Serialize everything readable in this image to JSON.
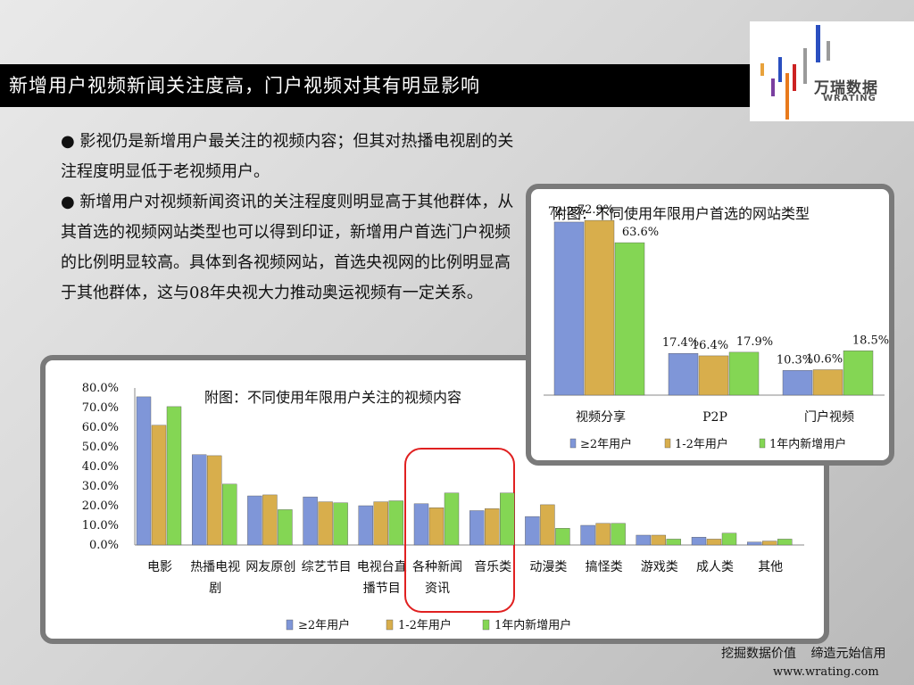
{
  "slide": {
    "title": "新增用户视频新闻关注度高，门户视频对其有明显影响",
    "logo": {
      "cn": "万瑞数据",
      "en": "WRATING"
    },
    "bullets": [
      "● 影视仍是新增用户最关注的视频内容；但其对热播电视剧的关注程度明显低于老视频用户。",
      "● 新增用户对视频新闻资讯的关注程度则明显高于其他群体，从其首选的视频网站类型也可以得到印证，新增用户首选门户视频的比例明显较高。具体到各视频网站，首选央视网的比例明显高于其他群体，这与08年央视大力推动奥运视频有一定关系。"
    ],
    "footer": {
      "slogan": "挖掘数据价值 缔造元始信用",
      "url": "www.wrating.com"
    }
  },
  "colors": {
    "series1": "#7f96d8",
    "series2": "#d8ae4c",
    "series3": "#84d654",
    "highlight": "#e02020",
    "titlebar": "#000000"
  },
  "chart_data": [
    {
      "type": "bar",
      "title": "附图：不同使用年限用户关注的视频内容",
      "categories": [
        "电影",
        "热播电视剧",
        "网友原创",
        "综艺节目",
        "电视台直播节目",
        "各种新闻资讯",
        "音乐类",
        "动漫类",
        "搞怪类",
        "游戏类",
        "成人类",
        "其他"
      ],
      "category_lines": [
        [
          "电影"
        ],
        [
          "热播电视",
          "剧"
        ],
        [
          "网友原创"
        ],
        [
          "综艺节目"
        ],
        [
          "电视台直",
          "播节目"
        ],
        [
          "各种新闻",
          "资讯"
        ],
        [
          "音乐类"
        ],
        [
          "动漫类"
        ],
        [
          "搞怪类"
        ],
        [
          "游戏类"
        ],
        [
          "成人类"
        ],
        [
          "其他"
        ]
      ],
      "series": [
        {
          "name": "≥2年用户",
          "values": [
            75.5,
            46.0,
            25.0,
            24.5,
            20.0,
            21.0,
            17.5,
            14.5,
            10.0,
            5.0,
            4.0,
            1.5
          ]
        },
        {
          "name": "1-2年用户",
          "values": [
            61.0,
            45.5,
            25.5,
            22.0,
            22.0,
            19.0,
            18.5,
            20.5,
            11.0,
            5.0,
            3.0,
            2.0
          ]
        },
        {
          "name": "1年内新增用户",
          "values": [
            70.5,
            31.0,
            18.0,
            21.5,
            22.5,
            26.5,
            26.5,
            8.5,
            11.0,
            3.0,
            6.0,
            3.0
          ]
        }
      ],
      "ylim": [
        0,
        80
      ],
      "yticks": [
        "0.0%",
        "10.0%",
        "20.0%",
        "30.0%",
        "40.0%",
        "50.0%",
        "60.0%",
        "70.0%",
        "80.0%"
      ],
      "legend_position": "bottom",
      "highlight_category": "各种新闻资讯"
    },
    {
      "type": "bar",
      "title": "附图：不同使用年限用户首选的网站类型",
      "categories": [
        "视频分享",
        "P2P",
        "门户视频"
      ],
      "series": [
        {
          "name": "≥2年用户",
          "values": [
            72.2,
            17.4,
            10.3
          ]
        },
        {
          "name": "1-2年用户",
          "values": [
            72.9,
            16.4,
            10.6
          ]
        },
        {
          "name": "1年内新增用户",
          "values": [
            63.6,
            17.9,
            18.5
          ]
        }
      ],
      "data_labels": [
        [
          "72.2%",
          "17.4%",
          "10.3%"
        ],
        [
          "72.9%",
          "16.4%",
          "10.6%"
        ],
        [
          "63.6%",
          "17.9%",
          "18.5%"
        ]
      ],
      "ylim": [
        0,
        80
      ],
      "legend_position": "bottom"
    }
  ]
}
